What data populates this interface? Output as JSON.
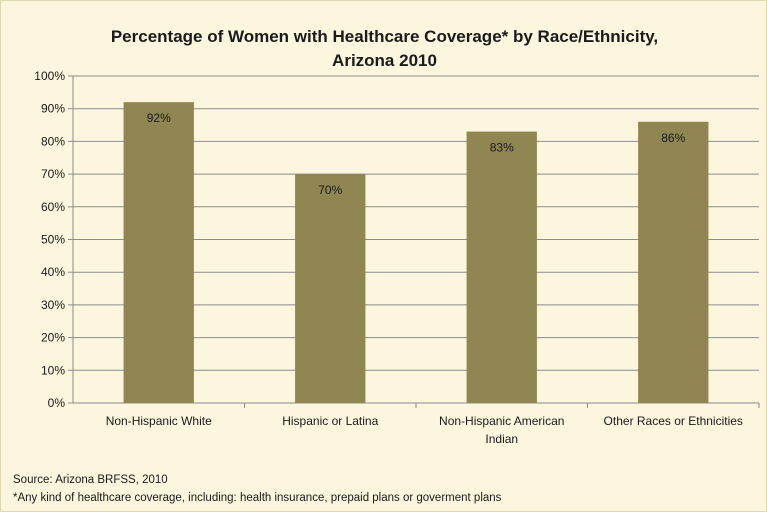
{
  "chart_data": {
    "type": "bar",
    "title": "Percentage of Women with Healthcare Coverage* by Race/Ethnicity, Arizona 2010",
    "title_lines": [
      "Percentage of Women with Healthcare Coverage* by Race/Ethnicity,",
      "Arizona 2010"
    ],
    "categories": [
      [
        "Non-Hispanic White"
      ],
      [
        "Hispanic or Latina"
      ],
      [
        "Non-Hispanic American",
        "Indian"
      ],
      [
        "Other Races or Ethnicities"
      ]
    ],
    "values": [
      92,
      70,
      83,
      86
    ],
    "data_labels": [
      "92%",
      "70%",
      "83%",
      "86%"
    ],
    "ylim": [
      0,
      100
    ],
    "yticks": [
      0,
      10,
      20,
      30,
      40,
      50,
      60,
      70,
      80,
      90,
      100
    ],
    "ytick_labels": [
      "0%",
      "10%",
      "20%",
      "30%",
      "40%",
      "50%",
      "60%",
      "70%",
      "80%",
      "90%",
      "100%"
    ],
    "xlabel": "",
    "ylabel": "",
    "grid": true,
    "legend": "none",
    "bar_color": "#8f8651"
  },
  "footer": {
    "source": "Source: Arizona BRFSS, 2010",
    "note": "*Any kind of healthcare coverage, including: health insurance, prepaid plans or goverment plans"
  }
}
